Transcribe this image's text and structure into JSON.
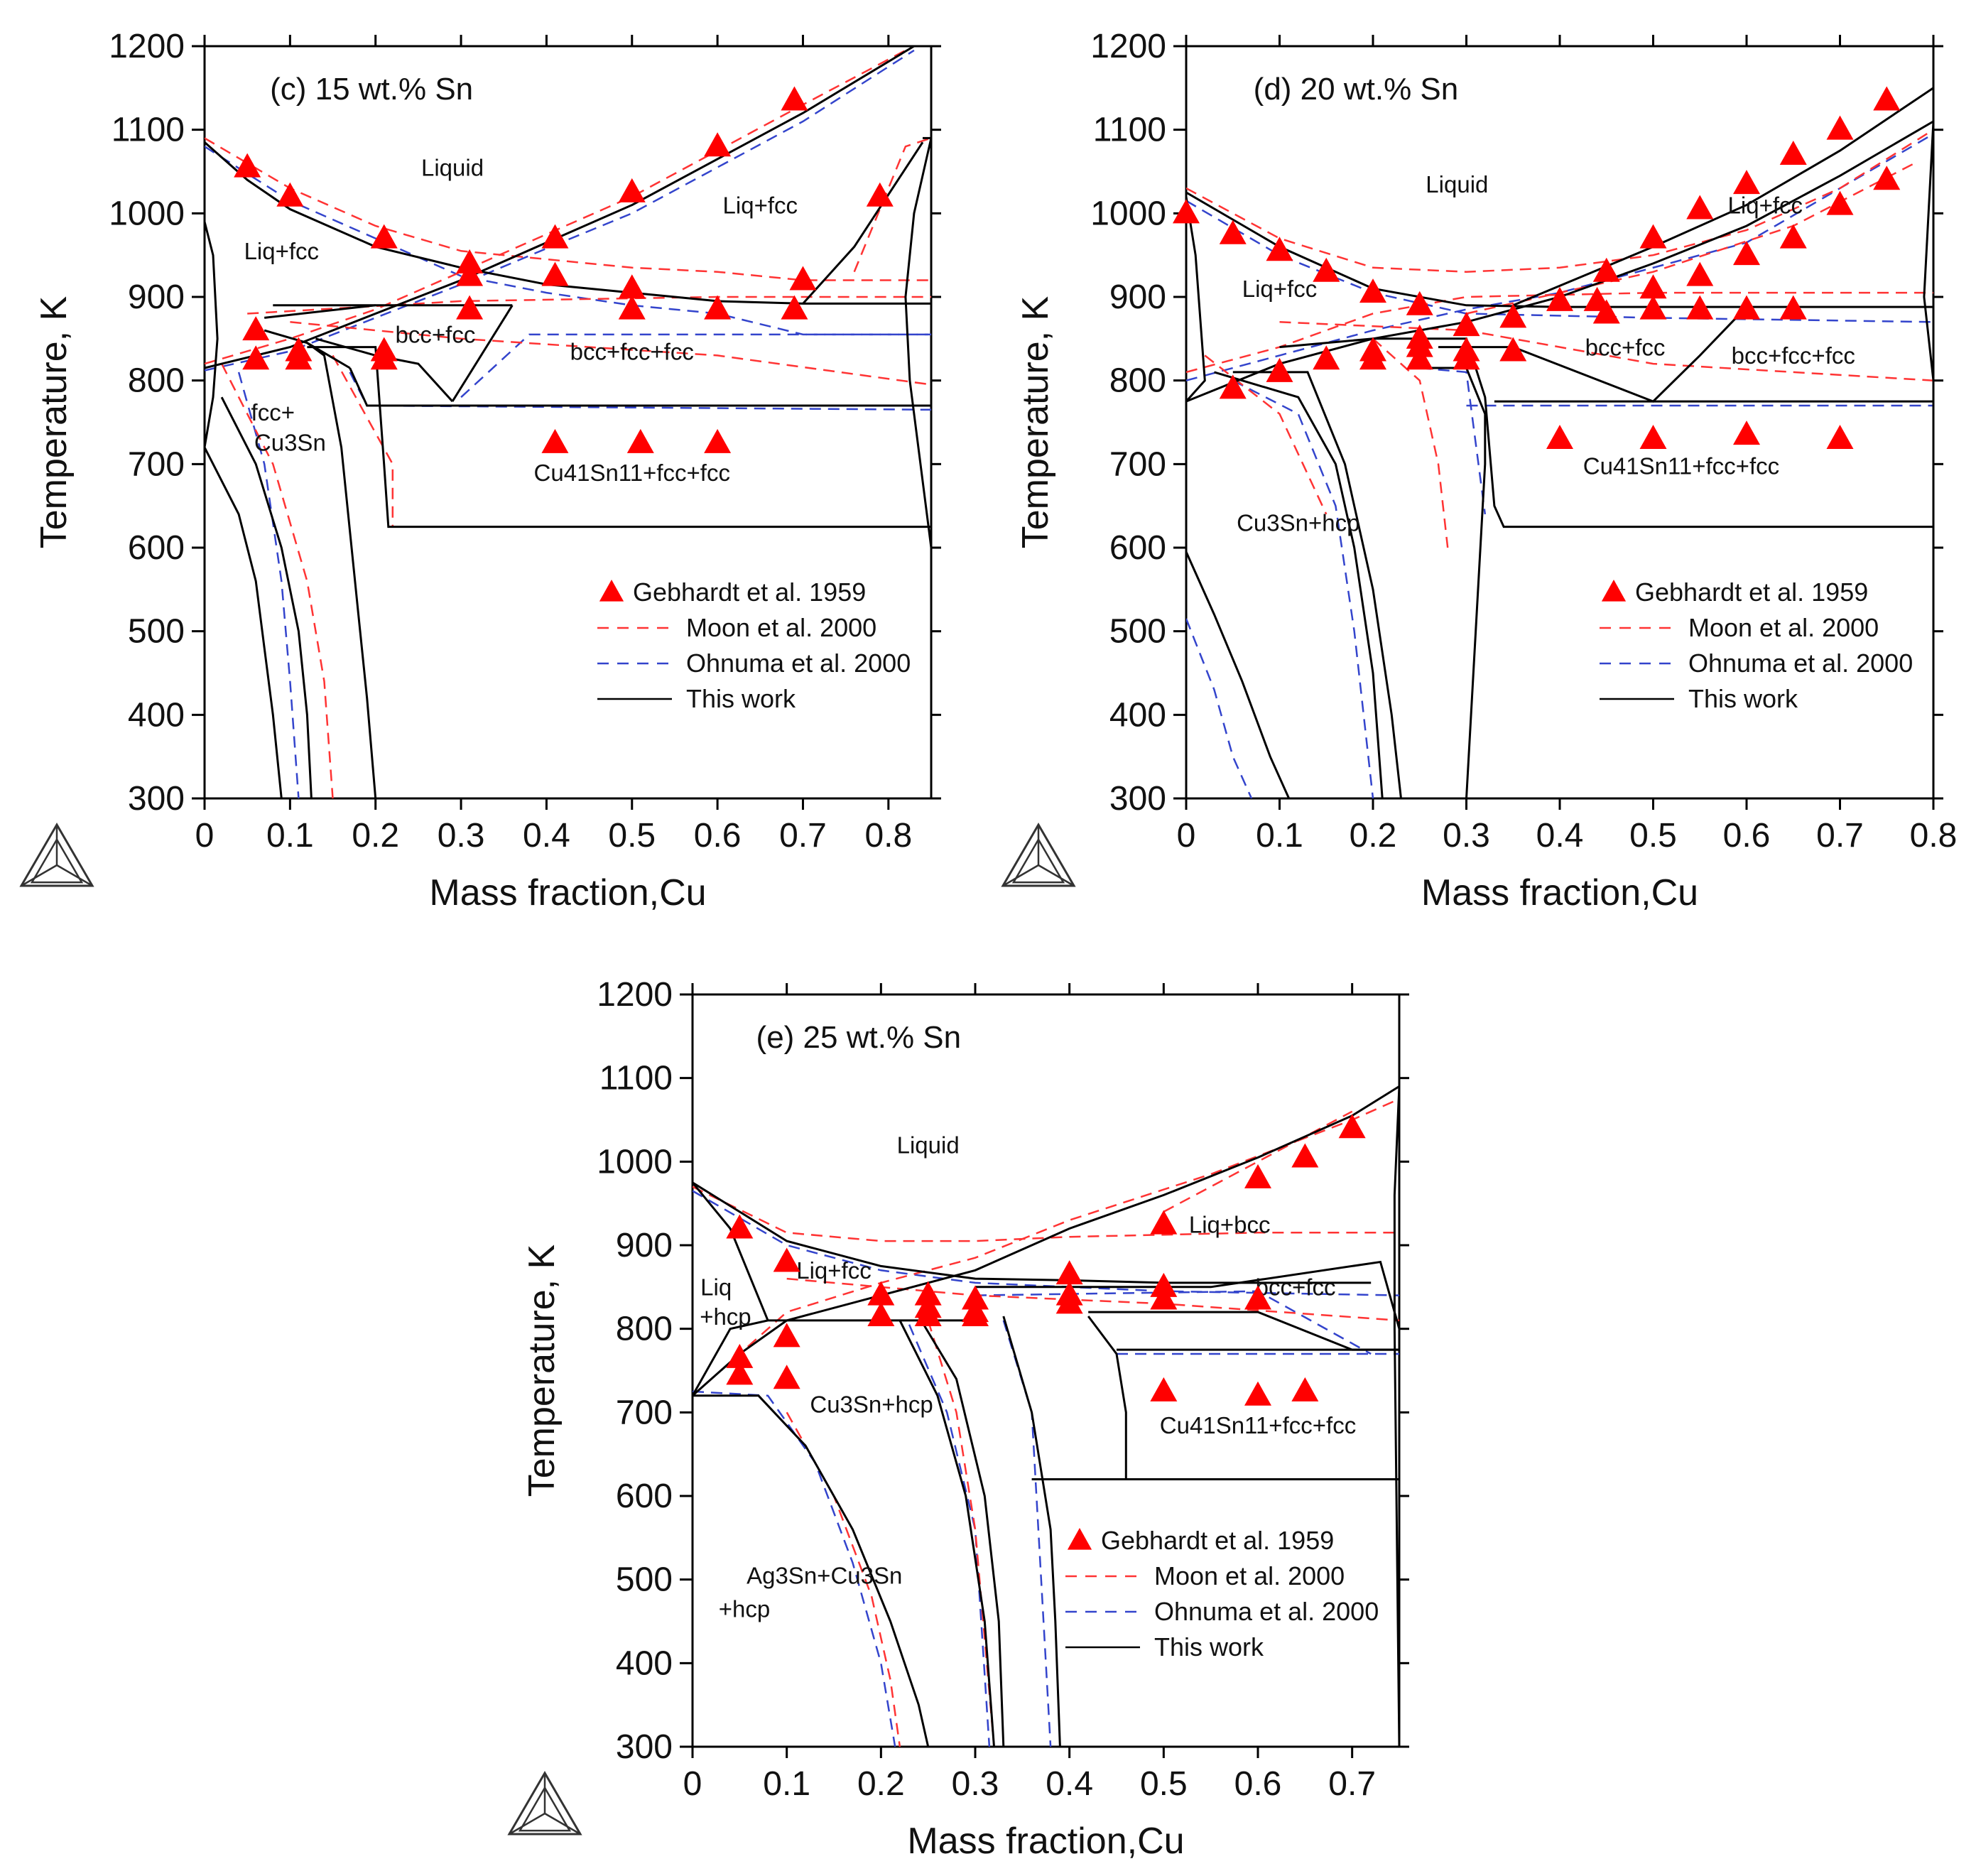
{
  "figure": {
    "colors": {
      "experiment": "#ff0000",
      "moon": "#ff3333",
      "ohnuma": "#3344cc",
      "thiswork": "#000000"
    },
    "icon": "thermo-calc-logo-icon"
  },
  "chart_data": [
    {
      "type": "scatter",
      "title": "(c) 15 wt.% Sn",
      "xlabel": "Mass fraction,Cu",
      "ylabel": "Temperature, K",
      "xlim": [
        0,
        0.85
      ],
      "ylim": [
        300,
        1200
      ],
      "xticks": [
        "0",
        "0.1",
        "0.2",
        "0.3",
        "0.4",
        "0.5",
        "0.6",
        "0.7",
        "0.8"
      ],
      "yticks": [
        "300",
        "400",
        "500",
        "600",
        "700",
        "800",
        "900",
        "1000",
        "1100",
        "1200"
      ],
      "regions": [
        "Liquid",
        "Liq+fcc",
        "Liq+fcc",
        "bcc+fcc",
        "bcc+fcc+fcc",
        "fcc+",
        "Cu3Sn",
        "Cu41Sn11+fcc+fcc"
      ],
      "legend": [
        {
          "name": "Gebhardt et al. 1959",
          "style": "triangle"
        },
        {
          "name": "Moon et al. 2000",
          "style": "red-dash"
        },
        {
          "name": "Ohnuma et al. 2000",
          "style": "blue-dash"
        },
        {
          "name": "This work",
          "style": "black-solid"
        }
      ],
      "series": [
        {
          "name": "Gebhardt et al. 1959",
          "points": [
            [
              0.05,
              1055
            ],
            [
              0.1,
              1020
            ],
            [
              0.21,
              970
            ],
            [
              0.31,
              940
            ],
            [
              0.31,
              925
            ],
            [
              0.41,
              970
            ],
            [
              0.41,
              925
            ],
            [
              0.5,
              1025
            ],
            [
              0.5,
              910
            ],
            [
              0.6,
              1080
            ],
            [
              0.69,
              1135
            ],
            [
              0.79,
              1020
            ],
            [
              0.7,
              920
            ],
            [
              0.06,
              860
            ],
            [
              0.06,
              825
            ],
            [
              0.11,
              835
            ],
            [
              0.11,
              825
            ],
            [
              0.21,
              835
            ],
            [
              0.21,
              825
            ],
            [
              0.31,
              885
            ],
            [
              0.5,
              885
            ],
            [
              0.6,
              885
            ],
            [
              0.69,
              885
            ],
            [
              0.41,
              725
            ],
            [
              0.51,
              725
            ],
            [
              0.6,
              725
            ]
          ]
        }
      ]
    },
    {
      "type": "scatter",
      "title": "(d) 20 wt.% Sn",
      "xlabel": "Mass fraction,Cu",
      "ylabel": "Temperature, K",
      "xlim": [
        0,
        0.8
      ],
      "ylim": [
        300,
        1200
      ],
      "xticks": [
        "0",
        "0.1",
        "0.2",
        "0.3",
        "0.4",
        "0.5",
        "0.6",
        "0.7",
        "0.8"
      ],
      "yticks": [
        "300",
        "400",
        "500",
        "600",
        "700",
        "800",
        "900",
        "1000",
        "1100",
        "1200"
      ],
      "regions": [
        "Liquid",
        "Liq+fcc",
        "Liq+fcc",
        "bcc+fcc",
        "bcc+fcc+fcc",
        "Cu41Sn11+fcc+fcc",
        "Cu3Sn+hcp"
      ],
      "legend": [
        {
          "name": "Gebhardt et al. 1959",
          "style": "triangle"
        },
        {
          "name": "Moon et al. 2000",
          "style": "red-dash"
        },
        {
          "name": "Ohnuma et al. 2000",
          "style": "blue-dash"
        },
        {
          "name": "This work",
          "style": "black-solid"
        }
      ],
      "series": [
        {
          "name": "Gebhardt et al. 1959",
          "points": [
            [
              0.0,
              1000
            ],
            [
              0.05,
              975
            ],
            [
              0.1,
              955
            ],
            [
              0.15,
              930
            ],
            [
              0.2,
              905
            ],
            [
              0.25,
              890
            ],
            [
              0.05,
              790
            ],
            [
              0.1,
              810
            ],
            [
              0.15,
              825
            ],
            [
              0.2,
              835
            ],
            [
              0.2,
              825
            ],
            [
              0.25,
              850
            ],
            [
              0.25,
              840
            ],
            [
              0.25,
              825
            ],
            [
              0.3,
              865
            ],
            [
              0.3,
              835
            ],
            [
              0.3,
              825
            ],
            [
              0.35,
              875
            ],
            [
              0.35,
              835
            ],
            [
              0.4,
              895
            ],
            [
              0.44,
              895
            ],
            [
              0.45,
              930
            ],
            [
              0.45,
              880
            ],
            [
              0.5,
              910
            ],
            [
              0.5,
              885
            ],
            [
              0.5,
              970
            ],
            [
              0.55,
              1005
            ],
            [
              0.55,
              925
            ],
            [
              0.55,
              885
            ],
            [
              0.6,
              1035
            ],
            [
              0.6,
              950
            ],
            [
              0.6,
              885
            ],
            [
              0.65,
              1070
            ],
            [
              0.65,
              970
            ],
            [
              0.65,
              885
            ],
            [
              0.7,
              1100
            ],
            [
              0.7,
              1010
            ],
            [
              0.75,
              1135
            ],
            [
              0.75,
              1040
            ],
            [
              0.4,
              730
            ],
            [
              0.5,
              730
            ],
            [
              0.6,
              735
            ],
            [
              0.7,
              730
            ]
          ]
        }
      ]
    },
    {
      "type": "scatter",
      "title": "(e) 25 wt.% Sn",
      "xlabel": "Mass fraction,Cu",
      "ylabel": "Temperature, K",
      "xlim": [
        0,
        0.75
      ],
      "ylim": [
        300,
        1200
      ],
      "xticks": [
        "0",
        "0.1",
        "0.2",
        "0.3",
        "0.4",
        "0.5",
        "0.6",
        "0.7"
      ],
      "yticks": [
        "300",
        "400",
        "500",
        "600",
        "700",
        "800",
        "900",
        "1000",
        "1100",
        "1200"
      ],
      "regions": [
        "Liquid",
        "Liq+bcc",
        "Liq+fcc",
        "Liq",
        "+hcp",
        "bcc+fcc",
        "Cu3Sn+hcp",
        "Cu41Sn11+fcc+fcc",
        "Ag3Sn+Cu3Sn",
        "+hcp"
      ],
      "legend": [
        {
          "name": "Gebhardt et al. 1959",
          "style": "triangle"
        },
        {
          "name": "Moon et al. 2000",
          "style": "red-dash"
        },
        {
          "name": "Ohnuma et al. 2000",
          "style": "blue-dash"
        },
        {
          "name": "This work",
          "style": "black-solid"
        }
      ],
      "series": [
        {
          "name": "Gebhardt et al. 1959",
          "points": [
            [
              0.05,
              920
            ],
            [
              0.1,
              880
            ],
            [
              0.05,
              765
            ],
            [
              0.05,
              745
            ],
            [
              0.1,
              790
            ],
            [
              0.1,
              740
            ],
            [
              0.2,
              840
            ],
            [
              0.2,
              815
            ],
            [
              0.25,
              840
            ],
            [
              0.25,
              825
            ],
            [
              0.25,
              815
            ],
            [
              0.3,
              835
            ],
            [
              0.3,
              820
            ],
            [
              0.3,
              815
            ],
            [
              0.4,
              865
            ],
            [
              0.4,
              840
            ],
            [
              0.4,
              830
            ],
            [
              0.5,
              925
            ],
            [
              0.5,
              850
            ],
            [
              0.5,
              835
            ],
            [
              0.6,
              980
            ],
            [
              0.6,
              835
            ],
            [
              0.65,
              1005
            ],
            [
              0.7,
              1040
            ],
            [
              0.5,
              725
            ],
            [
              0.6,
              720
            ],
            [
              0.65,
              725
            ]
          ]
        }
      ]
    }
  ]
}
